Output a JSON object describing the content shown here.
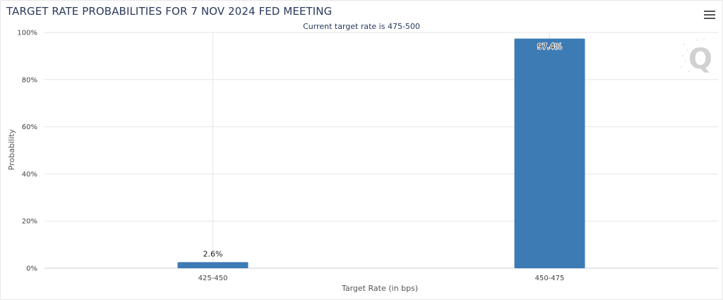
{
  "header": {
    "title": "TARGET RATE PROBABILITIES FOR 7 NOV 2024 FED MEETING",
    "menu_icon": "hamburger-menu-icon"
  },
  "chart_data": {
    "type": "bar",
    "title": "TARGET RATE PROBABILITIES FOR 7 NOV 2024 FED MEETING",
    "subtitle": "Current target rate is 475-500",
    "xlabel": "Target Rate (in bps)",
    "ylabel": "Probability",
    "categories": [
      "425-450",
      "450-475"
    ],
    "values": [
      2.6,
      97.4
    ],
    "value_labels": [
      "2.6%",
      "97.4%"
    ],
    "ylim": [
      0,
      100
    ],
    "yticks": [
      0,
      20,
      40,
      60,
      80,
      100
    ],
    "ytick_labels": [
      "0%",
      "20%",
      "40%",
      "60%",
      "80%",
      "100%"
    ],
    "grid": true,
    "bar_color": "#3d7bb5",
    "legend": "none"
  }
}
